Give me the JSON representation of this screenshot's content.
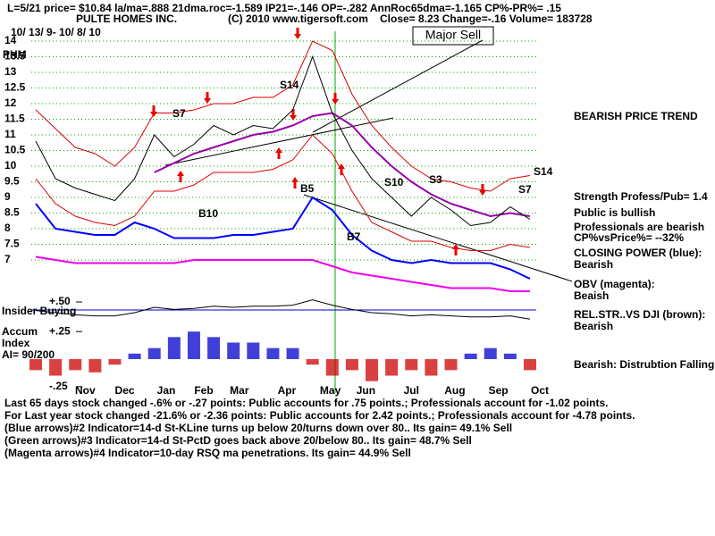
{
  "header": {
    "line1": "L=5/21  price= $10.84  la/ma=.888 21dma.roc=-1.589 IP21=-.146 OP=-.282 AnnRoc65dma=-1.165 CP%-PR%=  .15",
    "company": "PULTE HOMES INC.",
    "copyright": "(C) 2010 www.tigersoft.com",
    "quote": "Close=  8.23  Change=-.16 Volume= 183728",
    "range": "10/ 13/ 9- 10/ 8/ 10",
    "symbol": "PHM",
    "callout": "Major Sell"
  },
  "signals": [
    "S7",
    "S14",
    "S14",
    "B10",
    "B5",
    "B7",
    "S10",
    "S3",
    "S7"
  ],
  "side_notes": [
    "BEARISH PRICE TREND",
    "Strength Profess/Pub= 1.4",
    "Public is bullish",
    "Professionals are bearish",
    "CP%vsPrice%= --32%",
    "CLOSING POWER (blue):",
    "Bearish",
    "OBV (magenta):",
    "Beaish",
    "REL.STR..VS DJI (brown):",
    "Bearish",
    "Bearish: Distrubtion Falling."
  ],
  "notes": [
    "Last 65 days stock changed -.6% or -.27 points:  Public accounts for  .75 points.;  Professionals account for -1.02 points.",
    "For Last year stock changed -21.6% or -2.36 points:  Public accounts for  2.42 points.;  Professionals account for -4.78 points.",
    "(Blue arrows)#2 Indicator=14-d St-KLine turns up below 20/turns down over 80.. Its gain= 49.1% Sell",
    "(Green arrows)#3 Indicator=14-d St-PctD goes back above 20/below 80.. Its gain= 48.7% Sell",
    "(Magenta arrows)#4 Indicator=10-day RSQ ma penetrations. Its gain= 44.9% Sell"
  ],
  "chart_data": [
    {
      "type": "line",
      "ylim": [
        5.8,
        14.4
      ],
      "yticks": [
        7,
        7.5,
        8,
        8.5,
        9,
        9.5,
        10,
        10.5,
        11,
        11.5,
        12,
        12.5,
        13,
        13.5,
        14
      ],
      "grid": true,
      "xticks": [
        {
          "value": 2.5,
          "label": "Nov"
        },
        {
          "value": 4.5,
          "label": "Dec"
        },
        {
          "value": 6.6,
          "label": "Jan"
        },
        {
          "value": 8.5,
          "label": "Feb"
        },
        {
          "value": 10.3,
          "label": "Mar"
        },
        {
          "value": 12.7,
          "label": "Apr"
        },
        {
          "value": 14.9,
          "label": "May"
        },
        {
          "value": 16.7,
          "label": "Jun"
        },
        {
          "value": 19.0,
          "label": "Jul"
        },
        {
          "value": 21.2,
          "label": "Aug"
        },
        {
          "value": 23.4,
          "label": "Sep"
        },
        {
          "value": 25.5,
          "label": "Oct"
        }
      ],
      "series": [
        {
          "color": "#dd0000",
          "values": [
            11.8,
            11.2,
            10.6,
            10.4,
            10.0,
            10.6,
            11.7,
            11.7,
            11.8,
            12.0,
            12.0,
            12.2,
            12.2,
            12.6,
            14.0,
            13.7,
            12.3,
            11.3,
            10.6,
            10.0,
            9.6,
            9.5,
            9.3,
            9.2,
            9.6,
            9.7
          ]
        },
        {
          "color": "#dd0000",
          "values": [
            9.6,
            8.8,
            8.4,
            8.2,
            8.1,
            8.4,
            9.2,
            9.2,
            9.4,
            9.8,
            9.8,
            9.8,
            9.9,
            10.2,
            11.0,
            10.4,
            9.2,
            8.2,
            7.9,
            7.6,
            7.6,
            7.4,
            7.3,
            7.3,
            7.5,
            7.4
          ]
        },
        {
          "color": "#9900aa",
          "values": [
            null,
            null,
            null,
            null,
            null,
            null,
            9.8,
            10.1,
            10.4,
            10.6,
            10.8,
            11.0,
            11.1,
            11.3,
            11.6,
            11.7,
            11.3,
            10.6,
            10.0,
            9.5,
            9.1,
            8.8,
            8.6,
            8.4,
            8.5,
            8.4
          ]
        },
        {
          "color": "#000000",
          "values": [
            10.8,
            9.6,
            9.3,
            9.1,
            8.9,
            9.6,
            11.0,
            10.3,
            10.7,
            11.3,
            11.0,
            11.3,
            11.2,
            11.8,
            13.5,
            11.7,
            10.5,
            9.6,
            9.0,
            8.4,
            9.0,
            8.6,
            8.1,
            8.2,
            8.7,
            8.3
          ]
        },
        {
          "color": "#0000ff",
          "values": [
            8.8,
            8.0,
            7.9,
            7.8,
            7.8,
            8.2,
            8.0,
            7.7,
            7.7,
            7.7,
            7.8,
            7.8,
            7.9,
            8.0,
            9.0,
            8.6,
            7.8,
            7.3,
            7.0,
            6.9,
            7.0,
            6.9,
            6.9,
            6.9,
            6.7,
            6.4
          ]
        },
        {
          "color": "#ee00ee",
          "values": [
            7.1,
            7.0,
            6.9,
            6.9,
            6.9,
            6.9,
            6.9,
            6.9,
            7.0,
            7.0,
            7.0,
            7.0,
            7.0,
            7.0,
            7.0,
            6.8,
            6.6,
            6.5,
            6.4,
            6.3,
            6.2,
            6.1,
            6.1,
            6.1,
            6.0,
            6.0
          ]
        }
      ]
    },
    {
      "type": "line",
      "title": "Insider Buying",
      "ylim": [
        0.3,
        0.6
      ],
      "yticks": [
        {
          "value": 0.5,
          "label": "+.50"
        }
      ],
      "series": [
        {
          "color": "#000000",
          "values": [
            0.42,
            0.4,
            0.38,
            0.37,
            0.37,
            0.4,
            0.45,
            0.43,
            0.44,
            0.46,
            0.45,
            0.46,
            0.46,
            0.47,
            0.52,
            0.47,
            0.43,
            0.4,
            0.39,
            0.37,
            0.38,
            0.37,
            0.36,
            0.36,
            0.37,
            0.34
          ]
        }
      ]
    },
    {
      "type": "bar",
      "title": "Accum",
      "subtitle": "Index",
      "annotation": "AI= 90/200",
      "ylim": [
        -0.3,
        0.3
      ],
      "yticks": [
        {
          "value": 0.25,
          "label": "+.25"
        },
        {
          "value": -0.25,
          "label": "-.25"
        }
      ],
      "pos_color": "#0000cc",
      "neg_color": "#cc0000",
      "values": [
        -0.1,
        -0.15,
        -0.1,
        -0.12,
        -0.05,
        0.05,
        0.1,
        0.2,
        0.25,
        0.2,
        0.15,
        0.15,
        0.1,
        0.1,
        -0.05,
        -0.15,
        -0.1,
        -0.2,
        -0.15,
        -0.1,
        -0.15,
        -0.1,
        0.05,
        0.1,
        0.05,
        -0.1
      ]
    }
  ]
}
